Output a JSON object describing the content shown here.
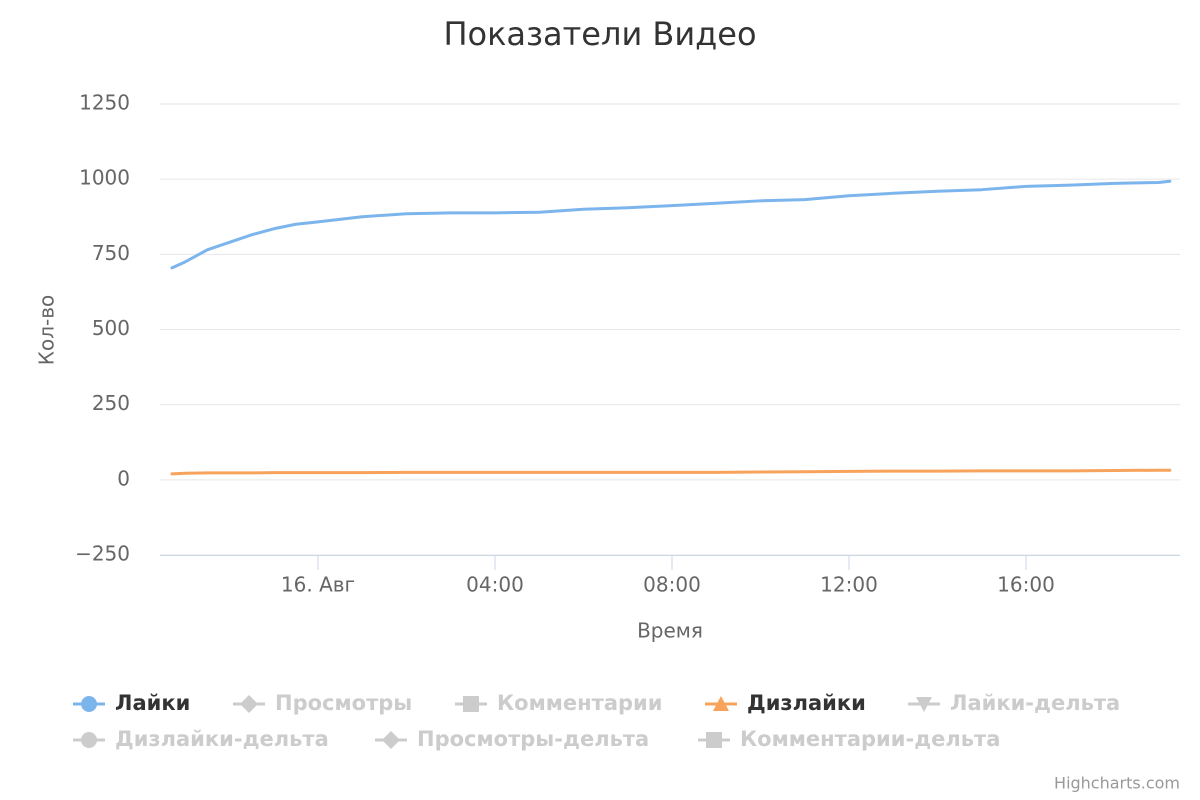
{
  "chart_data": {
    "type": "line",
    "title": "Показатели Видео",
    "x_label": "Время",
    "y_label": "Кол-во",
    "credit": "Highcharts.com",
    "grid": true,
    "xlim": [
      -3.57,
      19.48
    ],
    "xticks": [
      {
        "value": 0,
        "label": "16. Авг"
      },
      {
        "value": 4,
        "label": "04:00"
      },
      {
        "value": 8,
        "label": "08:00"
      },
      {
        "value": 12,
        "label": "12:00"
      },
      {
        "value": 16,
        "label": "16:00"
      }
    ],
    "ylim": [
      -250,
      1250
    ],
    "yticks": [
      {
        "value": -250,
        "label": "−250"
      },
      0,
      250,
      500,
      750,
      1000,
      1250
    ],
    "x": [
      -3.3,
      -3,
      -2.5,
      -2,
      -1.5,
      -1,
      -0.5,
      0,
      1,
      2,
      3,
      4,
      5,
      6,
      7,
      8,
      9,
      10,
      11,
      12,
      13,
      14,
      15,
      16,
      17,
      18,
      19,
      19.25
    ],
    "series": [
      {
        "name": "Лайки",
        "color": "#7cb5ec",
        "symbol": "circle",
        "visible": true,
        "values": [
          705,
          725,
          765,
          790,
          815,
          835,
          850,
          858,
          875,
          885,
          888,
          888,
          890,
          900,
          905,
          912,
          920,
          928,
          932,
          945,
          953,
          960,
          965,
          976,
          980,
          986,
          989,
          993
        ]
      },
      {
        "name": "Просмотры",
        "color": "#434348",
        "symbol": "diamond",
        "visible": false
      },
      {
        "name": "Комментарии",
        "color": "#90ed7d",
        "symbol": "square",
        "visible": false
      },
      {
        "name": "Дизлайки",
        "color": "#f7a35c",
        "symbol": "triangle",
        "visible": true,
        "values": [
          20,
          22,
          23,
          23,
          23,
          24,
          24,
          24,
          24,
          25,
          25,
          25,
          25,
          25,
          25,
          25,
          25,
          26,
          27,
          28,
          29,
          29,
          30,
          30,
          30,
          31,
          32,
          32
        ]
      },
      {
        "name": "Лайки-дельта",
        "color": "#8085e9",
        "symbol": "triangle-down",
        "visible": false
      },
      {
        "name": "Дизлайки-дельта",
        "color": "#f15c80",
        "symbol": "circle",
        "visible": false
      },
      {
        "name": "Просмотры-дельта",
        "color": "#e4d354",
        "symbol": "diamond",
        "visible": false
      },
      {
        "name": "Комментарии-дельта",
        "color": "#2b908f",
        "symbol": "square",
        "visible": false
      }
    ]
  }
}
